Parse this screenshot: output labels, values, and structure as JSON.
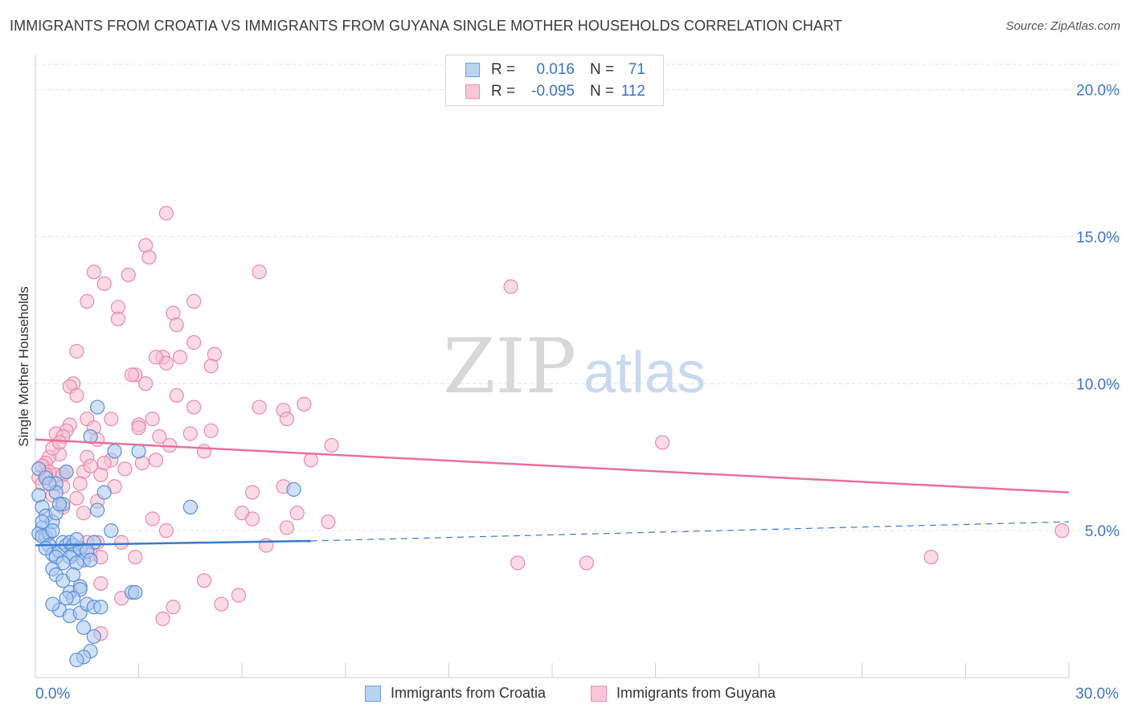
{
  "title": "IMMIGRANTS FROM CROATIA VS IMMIGRANTS FROM GUYANA SINGLE MOTHER HOUSEHOLDS CORRELATION CHART",
  "source": "Source: ZipAtlas.com",
  "watermark": {
    "zip": "ZIP",
    "atlas": "atlas"
  },
  "stats": {
    "croatia": {
      "r_label": "R =",
      "r_value": "0.016",
      "n_label": "N =",
      "n_value": "71"
    },
    "guyana": {
      "r_label": "R =",
      "r_value": "-0.095",
      "n_label": "N =",
      "n_value": "112"
    }
  },
  "legend": {
    "croatia": "Immigrants from Croatia",
    "guyana": "Immigrants from Guyana"
  },
  "chart_data": {
    "type": "scatter",
    "title": "IMMIGRANTS FROM CROATIA VS IMMIGRANTS FROM GUYANA SINGLE MOTHER HOUSEHOLDS CORRELATION CHART",
    "xlabel": "",
    "ylabel": "Single Mother Households",
    "xlim": [
      0,
      30
    ],
    "ylim": [
      0,
      21
    ],
    "x_tick_labels": [
      "0.0%",
      "30.0%"
    ],
    "y_ticks": [
      5,
      10,
      15,
      20
    ],
    "y_tick_labels": [
      "5.0%",
      "10.0%",
      "15.0%",
      "20.0%"
    ],
    "colors": {
      "croatia_fill": "#a9c9f0",
      "croatia_stroke": "#5b8fd6",
      "croatia_line": "#3b78cc",
      "guyana_fill": "#f6bdd0",
      "guyana_stroke": "#e88aa8",
      "guyana_line": "#e8709a",
      "axis_value": "#3f74c9"
    },
    "series": [
      {
        "name": "Immigrants from Croatia",
        "trend": {
          "x": [
            0,
            8
          ],
          "y": [
            4.5,
            4.65
          ],
          "dash_x": [
            8,
            30
          ],
          "dash_y": [
            4.65,
            5.3
          ]
        },
        "points": [
          [
            0.1,
            6.2
          ],
          [
            0.2,
            5.8
          ],
          [
            0.3,
            5.5
          ],
          [
            0.2,
            5.1
          ],
          [
            0.1,
            4.9
          ],
          [
            0.3,
            4.8
          ],
          [
            0.4,
            4.9
          ],
          [
            0.2,
            4.8
          ],
          [
            0.5,
            5.3
          ],
          [
            0.6,
            5.6
          ],
          [
            0.5,
            5.0
          ],
          [
            0.8,
            5.9
          ],
          [
            0.6,
            6.6
          ],
          [
            0.6,
            6.3
          ],
          [
            0.9,
            7.0
          ],
          [
            0.7,
            5.9
          ],
          [
            0.4,
            4.5
          ],
          [
            0.5,
            4.2
          ],
          [
            0.7,
            4.3
          ],
          [
            0.6,
            4.1
          ],
          [
            0.8,
            4.6
          ],
          [
            0.9,
            4.5
          ],
          [
            1.0,
            4.6
          ],
          [
            1.1,
            4.5
          ],
          [
            1.1,
            4.2
          ],
          [
            1.0,
            4.1
          ],
          [
            1.3,
            4.4
          ],
          [
            1.4,
            4.0
          ],
          [
            1.2,
            3.9
          ],
          [
            0.8,
            3.9
          ],
          [
            0.5,
            3.7
          ],
          [
            0.6,
            3.5
          ],
          [
            0.8,
            3.3
          ],
          [
            1.1,
            3.5
          ],
          [
            1.3,
            3.1
          ],
          [
            1.0,
            2.9
          ],
          [
            1.3,
            3.0
          ],
          [
            1.1,
            2.7
          ],
          [
            0.9,
            2.7
          ],
          [
            0.7,
            2.3
          ],
          [
            0.5,
            2.5
          ],
          [
            1.0,
            2.1
          ],
          [
            1.3,
            2.2
          ],
          [
            1.5,
            2.5
          ],
          [
            1.7,
            2.4
          ],
          [
            1.4,
            1.7
          ],
          [
            1.7,
            1.4
          ],
          [
            1.6,
            0.9
          ],
          [
            1.4,
            0.7
          ],
          [
            1.2,
            0.6
          ],
          [
            1.8,
            9.2
          ],
          [
            1.6,
            8.2
          ],
          [
            2.3,
            7.7
          ],
          [
            1.8,
            5.7
          ],
          [
            2.0,
            6.3
          ],
          [
            1.7,
            4.6
          ],
          [
            2.2,
            5.0
          ],
          [
            2.8,
            2.9
          ],
          [
            3.0,
            7.7
          ],
          [
            4.5,
            5.8
          ],
          [
            7.5,
            6.4
          ],
          [
            2.9,
            2.9
          ],
          [
            0.1,
            7.1
          ],
          [
            0.3,
            6.8
          ],
          [
            0.4,
            6.6
          ],
          [
            0.2,
            5.3
          ],
          [
            0.3,
            4.4
          ],
          [
            1.5,
            4.3
          ],
          [
            1.6,
            4.0
          ],
          [
            1.2,
            4.7
          ],
          [
            1.9,
            2.4
          ]
        ]
      },
      {
        "name": "Immigrants from Guyana",
        "trend": {
          "x": [
            0,
            30
          ],
          "y": [
            8.1,
            6.3
          ]
        },
        "points": [
          [
            3.8,
            15.8
          ],
          [
            3.2,
            14.7
          ],
          [
            3.3,
            14.3
          ],
          [
            1.7,
            13.8
          ],
          [
            2.7,
            13.7
          ],
          [
            6.5,
            13.8
          ],
          [
            2.0,
            13.4
          ],
          [
            4.6,
            12.8
          ],
          [
            1.5,
            12.8
          ],
          [
            2.4,
            12.6
          ],
          [
            4.0,
            12.4
          ],
          [
            2.4,
            12.2
          ],
          [
            4.1,
            12.0
          ],
          [
            1.2,
            11.1
          ],
          [
            4.6,
            11.4
          ],
          [
            5.2,
            11.0
          ],
          [
            3.7,
            10.9
          ],
          [
            4.2,
            10.9
          ],
          [
            3.8,
            10.7
          ],
          [
            5.1,
            10.6
          ],
          [
            1.1,
            10.0
          ],
          [
            3.2,
            10.0
          ],
          [
            1.0,
            9.9
          ],
          [
            2.9,
            10.3
          ],
          [
            4.6,
            9.2
          ],
          [
            6.5,
            9.2
          ],
          [
            1.2,
            9.6
          ],
          [
            4.1,
            9.6
          ],
          [
            7.8,
            9.3
          ],
          [
            7.2,
            9.1
          ],
          [
            3.4,
            8.8
          ],
          [
            2.2,
            8.8
          ],
          [
            1.5,
            8.8
          ],
          [
            3.0,
            8.6
          ],
          [
            1.0,
            8.6
          ],
          [
            1.7,
            8.5
          ],
          [
            3.0,
            8.5
          ],
          [
            0.9,
            8.4
          ],
          [
            0.6,
            8.3
          ],
          [
            0.8,
            8.2
          ],
          [
            3.6,
            8.2
          ],
          [
            5.1,
            8.4
          ],
          [
            4.5,
            8.3
          ],
          [
            1.8,
            8.1
          ],
          [
            3.9,
            7.9
          ],
          [
            8.6,
            7.9
          ],
          [
            0.7,
            7.6
          ],
          [
            0.4,
            7.5
          ],
          [
            1.5,
            7.5
          ],
          [
            2.2,
            7.4
          ],
          [
            4.9,
            7.7
          ],
          [
            8.0,
            7.4
          ],
          [
            0.3,
            7.3
          ],
          [
            0.2,
            7.2
          ],
          [
            0.4,
            7.0
          ],
          [
            0.6,
            6.9
          ],
          [
            0.8,
            6.9
          ],
          [
            0.1,
            6.8
          ],
          [
            1.4,
            7.0
          ],
          [
            1.9,
            6.9
          ],
          [
            2.6,
            7.1
          ],
          [
            3.1,
            7.3
          ],
          [
            3.5,
            7.4
          ],
          [
            0.2,
            6.6
          ],
          [
            1.6,
            7.2
          ],
          [
            2.3,
            6.5
          ],
          [
            6.3,
            6.3
          ],
          [
            7.2,
            6.5
          ],
          [
            1.2,
            6.1
          ],
          [
            0.8,
            5.8
          ],
          [
            1.4,
            5.6
          ],
          [
            1.8,
            6.0
          ],
          [
            6.0,
            5.6
          ],
          [
            6.3,
            5.4
          ],
          [
            7.6,
            5.6
          ],
          [
            8.5,
            5.3
          ],
          [
            3.4,
            5.4
          ],
          [
            7.3,
            5.1
          ],
          [
            3.8,
            5.0
          ],
          [
            2.5,
            4.6
          ],
          [
            1.8,
            4.6
          ],
          [
            1.6,
            4.2
          ],
          [
            1.9,
            4.1
          ],
          [
            2.9,
            4.1
          ],
          [
            6.7,
            4.5
          ],
          [
            1.5,
            4.6
          ],
          [
            1.5,
            4.3
          ],
          [
            1.9,
            3.2
          ],
          [
            4.9,
            3.3
          ],
          [
            5.9,
            2.8
          ],
          [
            2.5,
            2.7
          ],
          [
            4.0,
            2.4
          ],
          [
            5.4,
            2.5
          ],
          [
            3.7,
            2.0
          ],
          [
            1.9,
            1.5
          ],
          [
            13.8,
            13.3
          ],
          [
            18.2,
            8.0
          ],
          [
            14.0,
            3.9
          ],
          [
            16.0,
            3.9
          ],
          [
            26.0,
            4.1
          ],
          [
            29.8,
            5.0
          ],
          [
            7.3,
            8.8
          ],
          [
            0.5,
            7.8
          ],
          [
            0.7,
            8.0
          ],
          [
            1.3,
            6.6
          ],
          [
            2.0,
            7.3
          ],
          [
            0.9,
            7.0
          ],
          [
            0.5,
            6.2
          ],
          [
            2.8,
            10.3
          ],
          [
            3.5,
            10.9
          ],
          [
            0.8,
            6.5
          ],
          [
            0.3,
            6.9
          ]
        ]
      }
    ]
  }
}
